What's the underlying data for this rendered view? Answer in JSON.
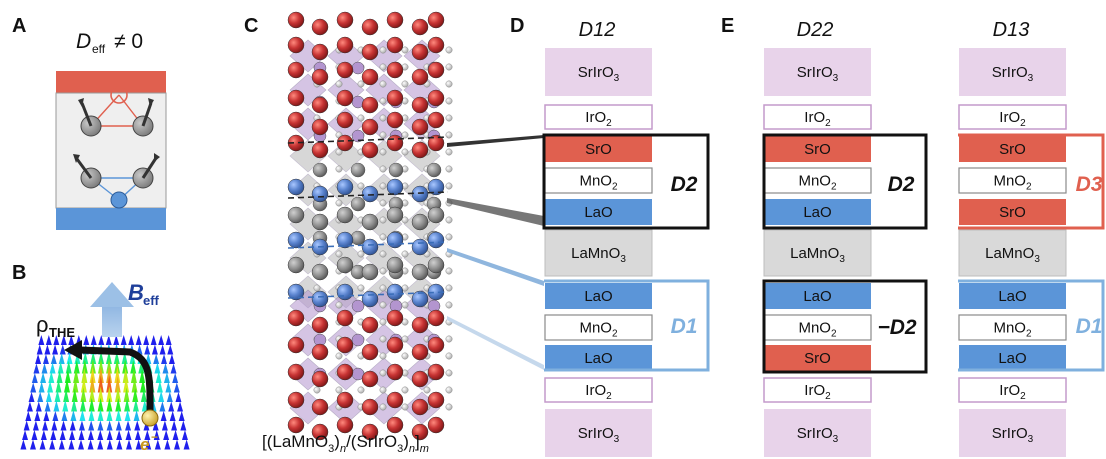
{
  "panels": {
    "A": {
      "letter": "A",
      "title_main": "D",
      "title_sub": "eff",
      "title_rel": "≠ 0"
    },
    "B": {
      "letter": "B",
      "rho_main": "ρ",
      "rho_sub": "THE",
      "b_main": "B",
      "b_sub": "eff",
      "electron": "e",
      "electron_sup": "−"
    },
    "C": {
      "letter": "C",
      "formula": {
        "open": "[(LaMnO",
        "s1": "3",
        "mid1": ")",
        "s2": "n",
        "mid2": "/(SrIrO",
        "s3": "3",
        "mid3": ")",
        "s4": "n",
        "mid4": "]",
        "s5": "m"
      }
    },
    "D": {
      "letter": "D",
      "column_title": "D12",
      "interface_labels": [
        "D2",
        "D1"
      ]
    },
    "E": {
      "letter": "E",
      "column_titles": [
        "D22",
        "D13"
      ],
      "interface_labels": [
        "D2",
        "−D2",
        "D3",
        "D1"
      ]
    }
  },
  "layers": {
    "SrIrO3": {
      "main": "SrIrO",
      "sub": "3"
    },
    "IrO2": {
      "main": "IrO",
      "sub": "2"
    },
    "SrO": {
      "main": "SrO",
      "sub": ""
    },
    "MnO2": {
      "main": "MnO",
      "sub": "2"
    },
    "LaO": {
      "main": "LaO",
      "sub": ""
    },
    "LaMnO3": {
      "main": "LaMnO",
      "sub": "3"
    }
  },
  "stacks": {
    "D12": [
      "SrIrO3",
      "IrO2",
      "SrO",
      "MnO2",
      "LaO",
      "LaMnO3",
      "LaO",
      "MnO2",
      "LaO",
      "IrO2",
      "SrIrO3"
    ],
    "D22": [
      "SrIrO3",
      "IrO2",
      "SrO",
      "MnO2",
      "LaO",
      "LaMnO3",
      "LaO",
      "MnO2",
      "SrO",
      "IrO2",
      "SrIrO3"
    ],
    "D13": [
      "SrIrO3",
      "IrO2",
      "SrO",
      "MnO2",
      "SrO",
      "LaMnO3",
      "LaO",
      "MnO2",
      "LaO",
      "IrO2",
      "SrIrO3"
    ]
  },
  "colors": {
    "SrIrO3": "#e8d3ea",
    "IrO2_border": "#c49acb",
    "SrO": "#e0604f",
    "LaO": "#5b95d8",
    "LaMnO3": "#d9d9d9",
    "D1": "#7fb0de",
    "D2": "#111111",
    "D3": "#e0604f",
    "sr_atom": "#c83434",
    "la_atom": "#5b84cf",
    "mn_atom": "#8f8f8f",
    "ir_octa": "#b395cf"
  }
}
